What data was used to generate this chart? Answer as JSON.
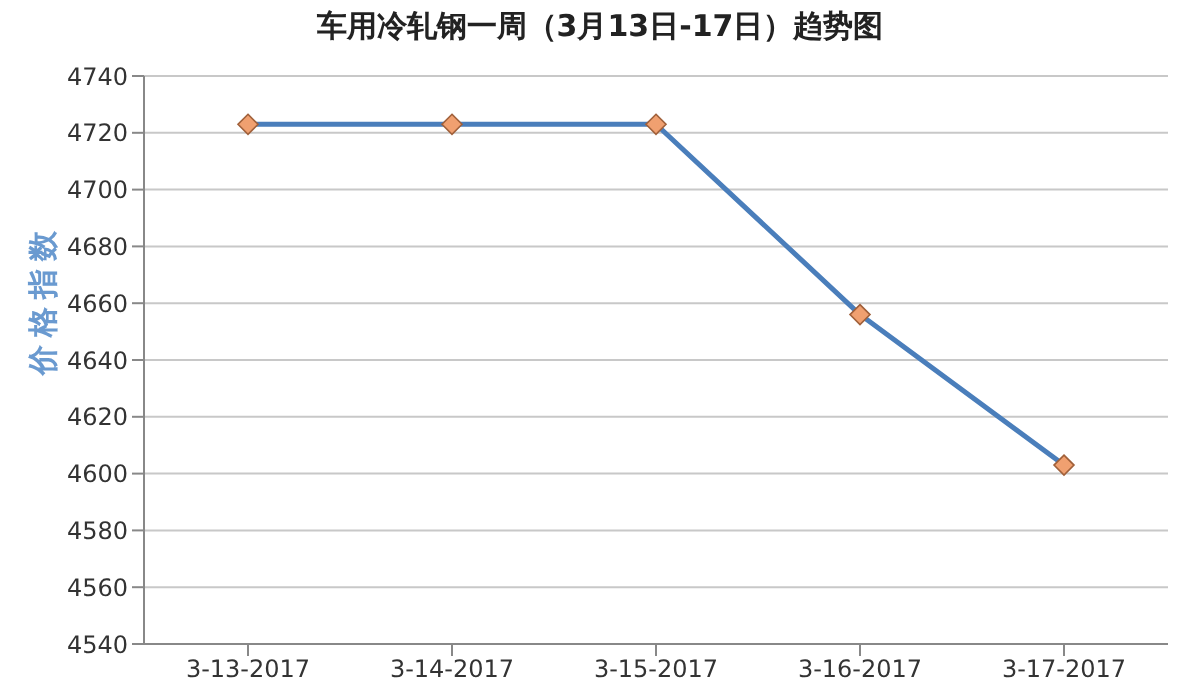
{
  "chart_data": {
    "type": "line",
    "title": "车用冷轧钢一周（3月13日-17日）趋势图",
    "ylabel": "价格指数",
    "categories": [
      "3-13-2017",
      "3-14-2017",
      "3-15-2017",
      "3-16-2017",
      "3-17-2017"
    ],
    "series": [
      {
        "color": "#4a7ebb",
        "values": [
          4723,
          4723,
          4723,
          4656,
          4603
        ]
      }
    ],
    "ylim": [
      4540,
      4740
    ],
    "yticks": [
      4540,
      4560,
      4580,
      4600,
      4620,
      4640,
      4660,
      4680,
      4700,
      4720,
      4740
    ],
    "grid": "y",
    "legend": false,
    "marker": "diamond",
    "line_style": "solid"
  }
}
